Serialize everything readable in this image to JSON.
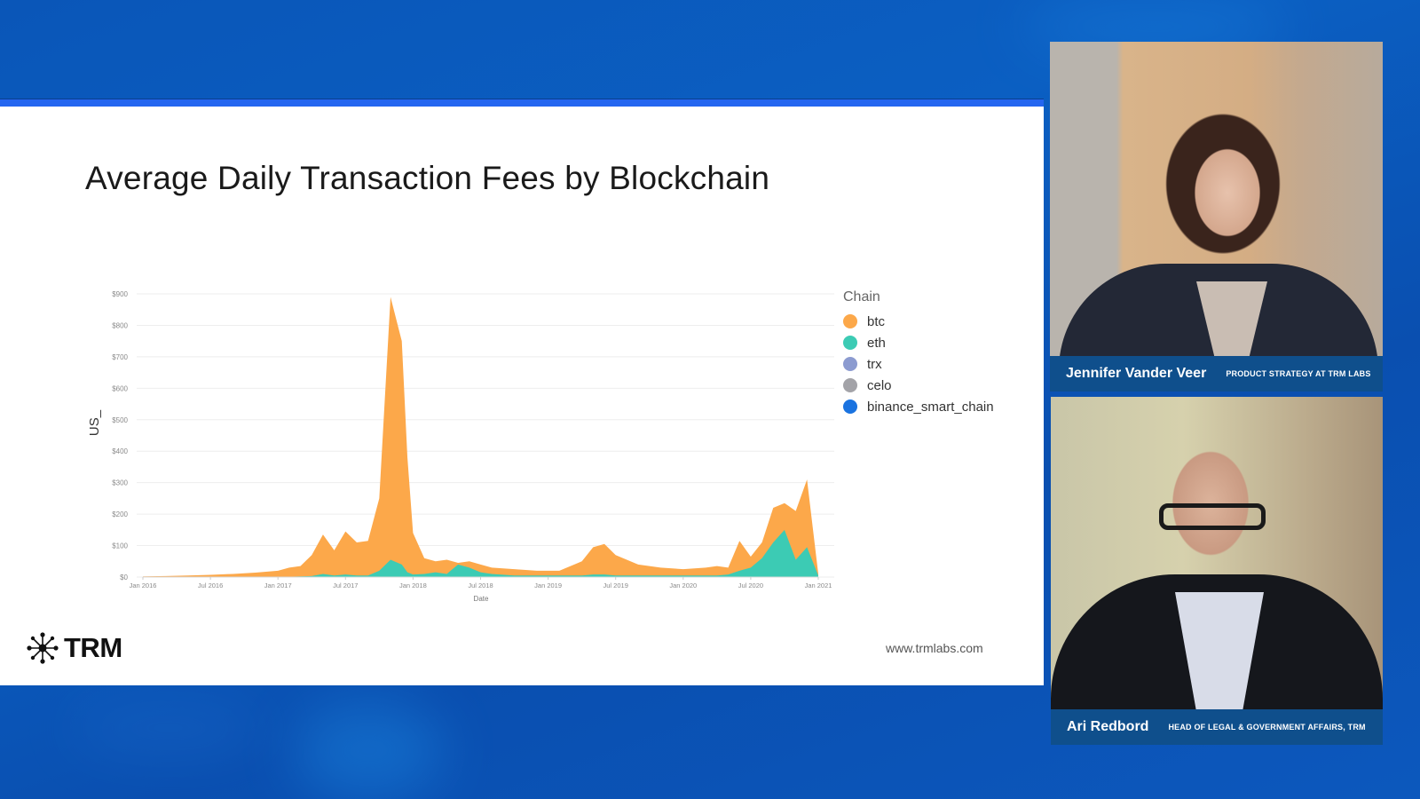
{
  "slide": {
    "title": "Average Daily Transaction Fees by Blockchain",
    "logo_text": "TRM",
    "website": "www.trmlabs.com"
  },
  "participants": [
    {
      "name": "Jennifer Vander Veer",
      "role": "PRODUCT STRATEGY AT TRM LABS"
    },
    {
      "name": "Ari Redbord",
      "role": "HEAD OF LEGAL & GOVERNMENT AFFAIRS, TRM"
    }
  ],
  "colors": {
    "btc": "#fca84a",
    "eth": "#3ccbb4",
    "trx": "#8c9bd0",
    "celo": "#a3a3a8",
    "binance_smart_chain": "#1a73e0",
    "slide_topbar": "#2466f0",
    "nameplate": "#0f4f8c"
  },
  "chart_data": {
    "type": "area",
    "stacked": true,
    "title": "Average Daily Transaction Fees by Blockchain",
    "xlabel": "Date",
    "ylabel": "US_",
    "ylim": [
      0,
      900
    ],
    "yticks": [
      "$0",
      "$100",
      "$200",
      "$300",
      "$400",
      "$500",
      "$600",
      "$700",
      "$800",
      "$900"
    ],
    "xticks": [
      "Jan 2016",
      "Jul 2016",
      "Jan 2017",
      "Jul 2017",
      "Jan 2018",
      "Jul 2018",
      "Jan 2019",
      "Jul 2019",
      "Jan 2020",
      "Jul 2020",
      "Jan 2021"
    ],
    "grid": true,
    "legend_title": "Chain",
    "legend_position": "right",
    "legend": [
      "btc",
      "eth",
      "trx",
      "celo",
      "binance_smart_chain"
    ],
    "x": [
      "2016-01",
      "2016-03",
      "2016-05",
      "2016-07",
      "2016-09",
      "2016-11",
      "2017-01",
      "2017-02",
      "2017-03",
      "2017-04",
      "2017-05",
      "2017-06",
      "2017-07",
      "2017-08",
      "2017-09",
      "2017-10",
      "2017-11",
      "2017-12",
      "2017-12b",
      "2018-01",
      "2018-02",
      "2018-03",
      "2018-04",
      "2018-05",
      "2018-06",
      "2018-07",
      "2018-08",
      "2018-10",
      "2018-12",
      "2019-02",
      "2019-04",
      "2019-05",
      "2019-06",
      "2019-07",
      "2019-09",
      "2019-11",
      "2020-01",
      "2020-03",
      "2020-04",
      "2020-05",
      "2020-06",
      "2020-07",
      "2020-08",
      "2020-09",
      "2020-10",
      "2020-11",
      "2020-12",
      "2021-01"
    ],
    "series": [
      {
        "name": "btc",
        "values": [
          2,
          3,
          5,
          7,
          10,
          14,
          20,
          30,
          35,
          70,
          135,
          85,
          145,
          110,
          115,
          250,
          890,
          750,
          380,
          140,
          60,
          50,
          55,
          45,
          50,
          40,
          30,
          25,
          20,
          20,
          50,
          95,
          105,
          70,
          40,
          30,
          25,
          30,
          35,
          30,
          115,
          65,
          110,
          220,
          235,
          210,
          310,
          10
        ]
      },
      {
        "name": "eth",
        "values": [
          0,
          0,
          0,
          0,
          0,
          0,
          0,
          1,
          2,
          3,
          10,
          5,
          8,
          5,
          5,
          20,
          55,
          40,
          15,
          8,
          10,
          15,
          10,
          40,
          30,
          15,
          10,
          5,
          5,
          5,
          5,
          8,
          8,
          5,
          5,
          5,
          5,
          5,
          5,
          8,
          20,
          30,
          60,
          110,
          150,
          55,
          95,
          5
        ]
      },
      {
        "name": "trx",
        "values": []
      },
      {
        "name": "celo",
        "values": []
      },
      {
        "name": "binance_smart_chain",
        "values": []
      }
    ]
  }
}
